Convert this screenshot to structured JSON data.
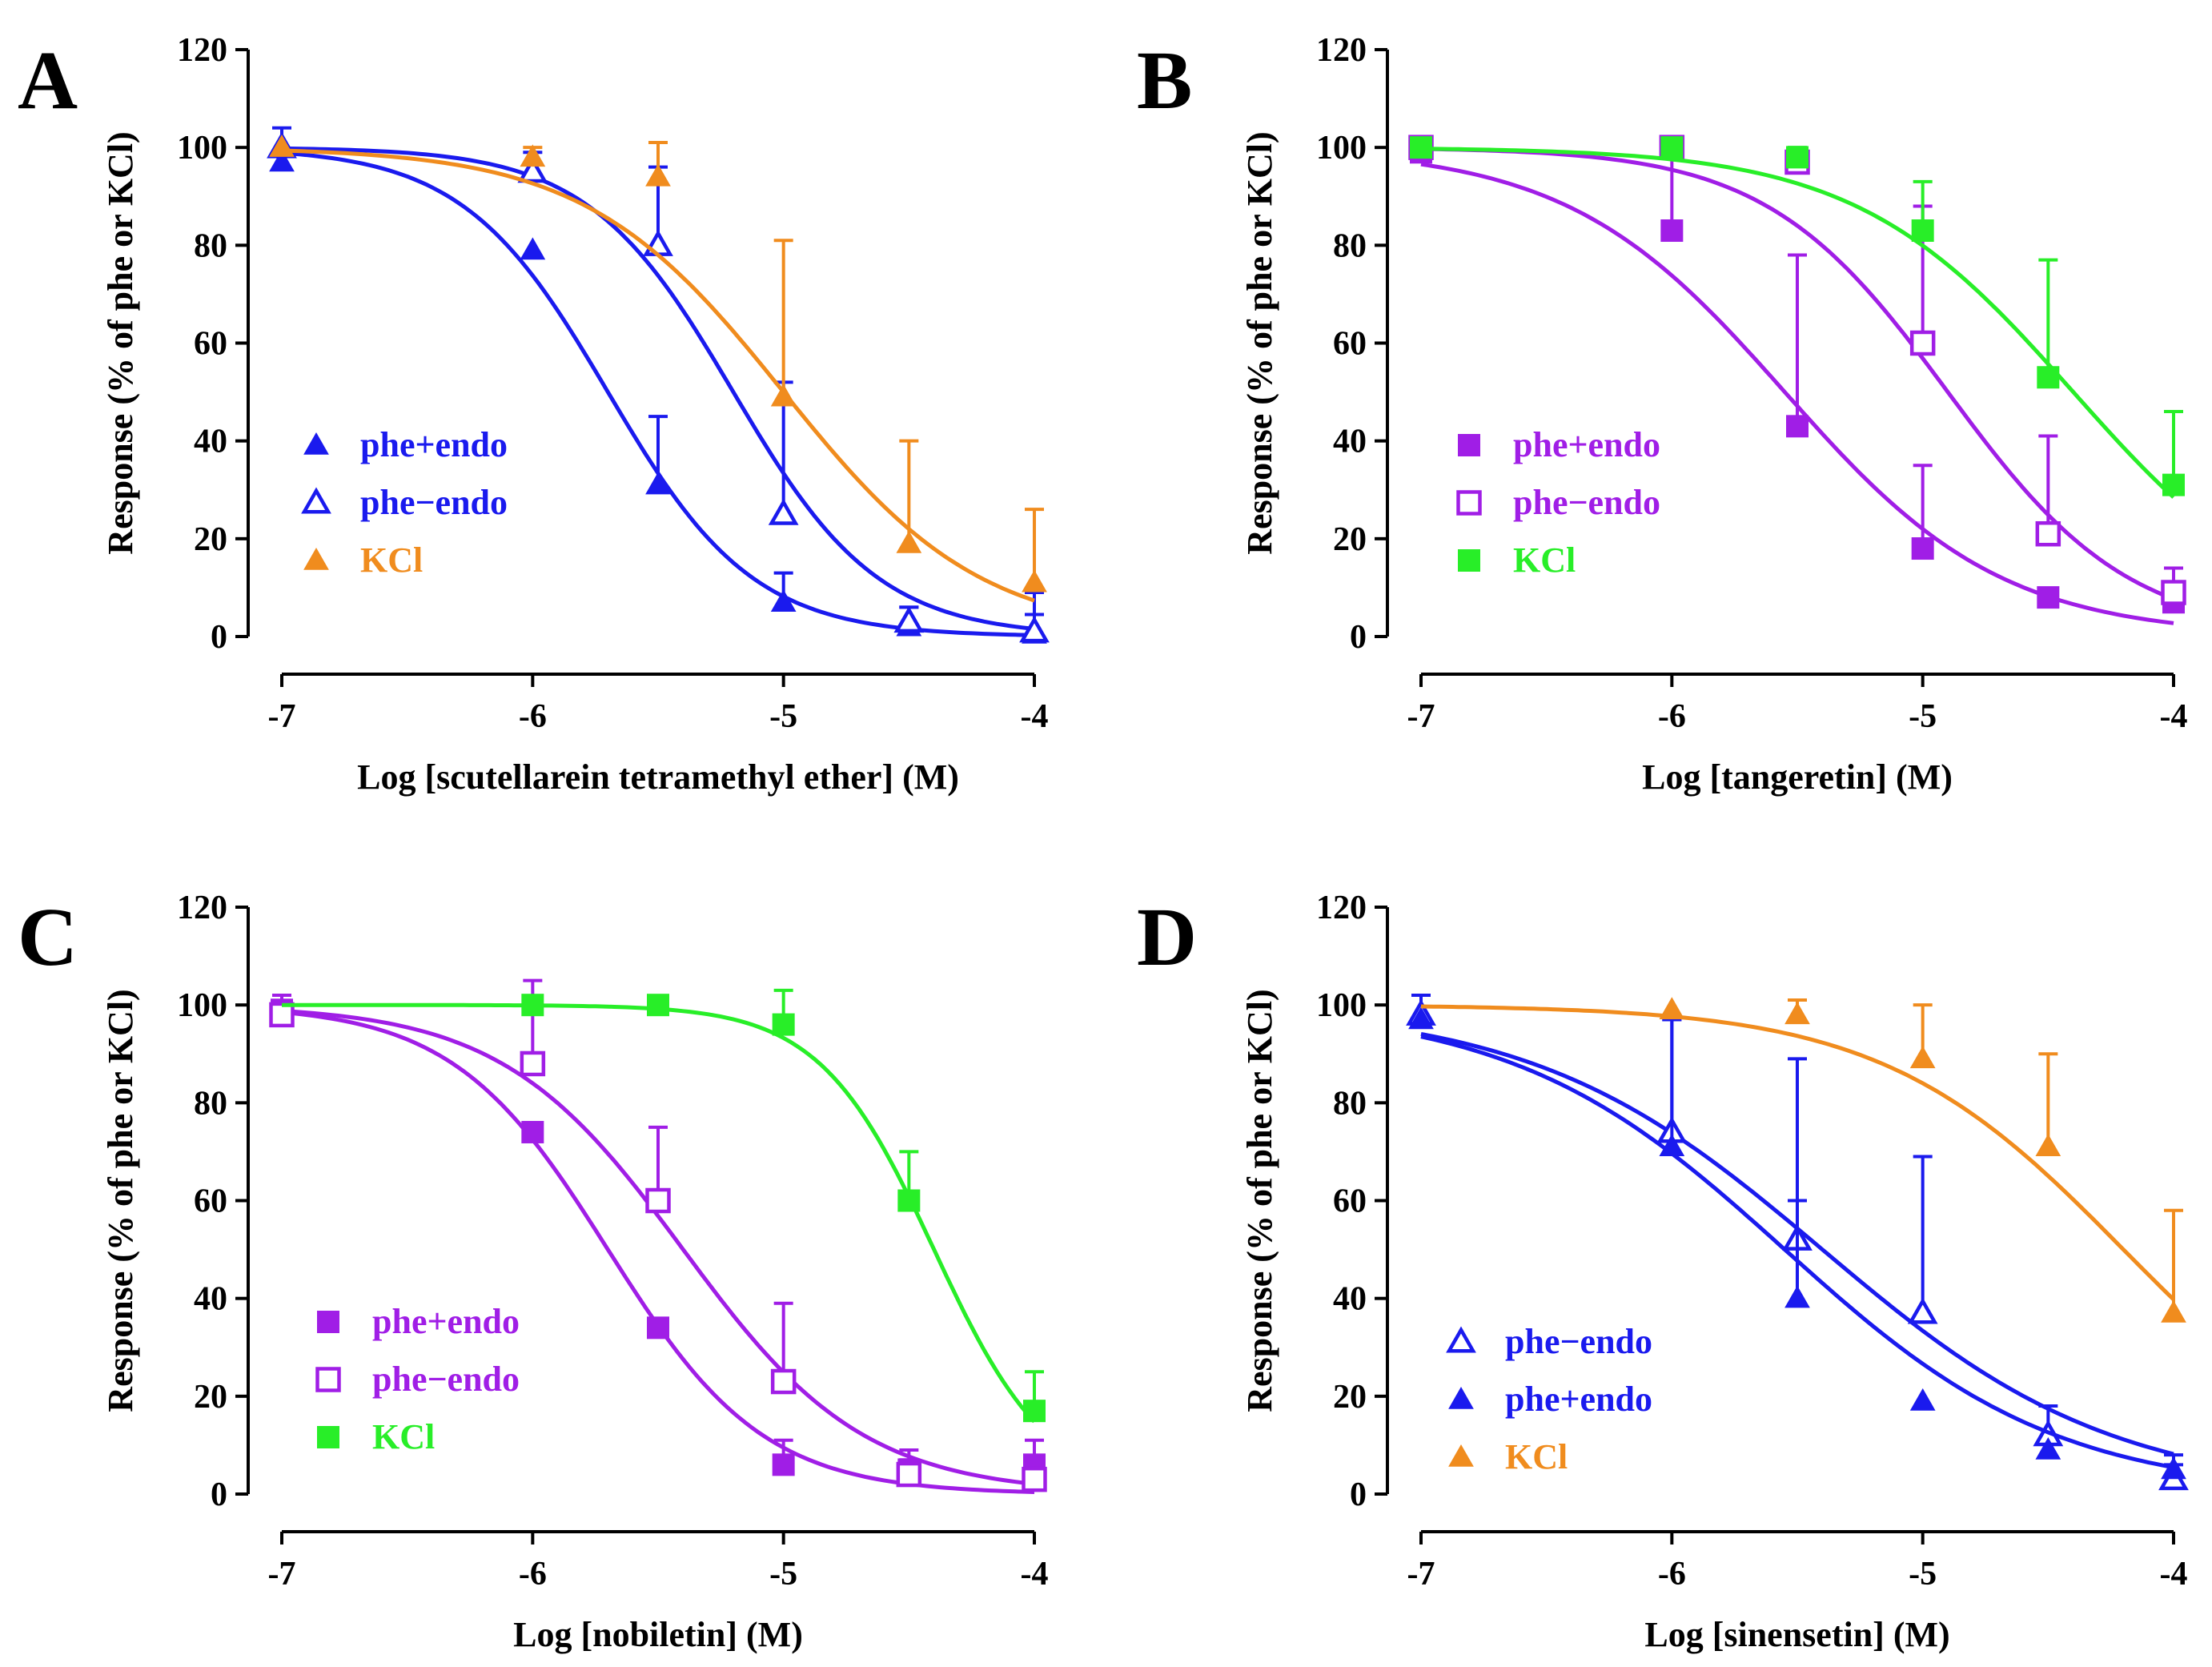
{
  "figure": {
    "panels": [
      {
        "letter": "A"
      },
      {
        "letter": "B"
      },
      {
        "letter": "C"
      },
      {
        "letter": "D"
      }
    ]
  },
  "colors": {
    "blue": "#1a1aee",
    "orange": "#f08c1e",
    "purple": "#a01ee6",
    "green": "#28ee28"
  },
  "chart_data": [
    {
      "type": "line",
      "panel": "A",
      "title": "",
      "xlabel": "Log [scutellarein tetramethyl ether] (M)",
      "ylabel": "Response (% of phe or KCl)",
      "xlim": [
        -7,
        -4
      ],
      "ylim": [
        0,
        120
      ],
      "xticks": [
        -7,
        -6,
        -5,
        -4
      ],
      "xtick_labels": [
        "-7",
        "-6",
        "-5",
        "-4"
      ],
      "yticks": [
        0,
        20,
        40,
        60,
        80,
        100,
        120
      ],
      "ytick_labels": [
        "0",
        "20",
        "40",
        "60",
        "80",
        "100",
        "120"
      ],
      "series": [
        {
          "name": "phe+endo",
          "color": "blue",
          "marker": "triangle-filled",
          "x": [
            -7,
            -6,
            -5.5,
            -5,
            -4.5,
            -4
          ],
          "y": [
            97,
            79,
            31,
            7,
            2,
            0.5
          ],
          "err": [
            0,
            0,
            14,
            6,
            4,
            4
          ],
          "fit": {
            "top": 100,
            "bottom": 0,
            "logec50": -5.7,
            "hill": 1.5
          }
        },
        {
          "name": "phe−endo",
          "color": "blue",
          "marker": "triangle-open",
          "x": [
            -7,
            -6,
            -5.5,
            -5,
            -4.5,
            -4
          ],
          "y": [
            100,
            95,
            80,
            25,
            3,
            1
          ],
          "err": [
            4,
            4,
            16,
            27,
            3,
            8
          ],
          "fit": {
            "top": 100,
            "bottom": 0,
            "logec50": -5.2,
            "hill": 1.5
          }
        },
        {
          "name": "KCl",
          "color": "orange",
          "marker": "triangle-filled",
          "x": [
            -7,
            -6,
            -5.5,
            -5,
            -4.5,
            -4
          ],
          "y": [
            100,
            98,
            94,
            49,
            19,
            11
          ],
          "err": [
            0,
            2,
            7,
            32,
            21,
            15
          ],
          "fit": {
            "top": 100,
            "bottom": 0,
            "logec50": -5.0,
            "hill": 1.1
          }
        }
      ],
      "legend": {
        "placement": "lower-left",
        "order": [
          0,
          1,
          2
        ]
      }
    },
    {
      "type": "line",
      "panel": "B",
      "title": "",
      "xlabel": "Log [tangeretin] (M)",
      "ylabel": "Response (% of phe or KCl)",
      "xlim": [
        -7,
        -4
      ],
      "ylim": [
        0,
        120
      ],
      "xticks": [
        -7,
        -6,
        -5,
        -4
      ],
      "xtick_labels": [
        "-7",
        "-6",
        "-5",
        "-4"
      ],
      "yticks": [
        0,
        20,
        40,
        60,
        80,
        100,
        120
      ],
      "ytick_labels": [
        "0",
        "20",
        "40",
        "60",
        "80",
        "100",
        "120"
      ],
      "series": [
        {
          "name": "phe+endo",
          "color": "purple",
          "marker": "square-filled",
          "x": [
            -7,
            -6,
            -5.5,
            -5,
            -4.5,
            -4
          ],
          "y": [
            99,
            83,
            43,
            18,
            8,
            7
          ],
          "err": [
            0,
            15,
            35,
            17,
            0,
            4
          ],
          "fit": {
            "top": 100,
            "bottom": 0,
            "logec50": -5.55,
            "hill": 1.0
          }
        },
        {
          "name": "phe−endo",
          "color": "purple",
          "marker": "square-open",
          "x": [
            -7,
            -6,
            -5.5,
            -5,
            -4.5,
            -4
          ],
          "y": [
            100,
            100,
            97,
            60,
            21,
            9
          ],
          "err": [
            0,
            0,
            0,
            28,
            20,
            5
          ],
          "fit": {
            "top": 100,
            "bottom": 0,
            "logec50": -4.9,
            "hill": 1.2
          }
        },
        {
          "name": "KCl",
          "color": "green",
          "marker": "square-filled",
          "x": [
            -7,
            -6,
            -5.5,
            -5,
            -4.5,
            -4
          ],
          "y": [
            100,
            100,
            98,
            83,
            53,
            31
          ],
          "err": [
            0,
            0,
            2,
            10,
            24,
            15
          ],
          "fit": {
            "top": 100,
            "bottom": 0,
            "logec50": -4.4,
            "hill": 1.0
          }
        }
      ],
      "legend": {
        "placement": "lower-left",
        "order": [
          0,
          1,
          2
        ]
      }
    },
    {
      "type": "line",
      "panel": "C",
      "title": "",
      "xlabel": "Log [nobiletin] (M)",
      "ylabel": "Response (% of phe or KCl)",
      "xlim": [
        -7,
        -4
      ],
      "ylim": [
        0,
        120
      ],
      "xticks": [
        -7,
        -6,
        -5,
        -4
      ],
      "xtick_labels": [
        "-7",
        "-6",
        "-5",
        "-4"
      ],
      "yticks": [
        0,
        20,
        40,
        60,
        80,
        100,
        120
      ],
      "ytick_labels": [
        "0",
        "20",
        "40",
        "60",
        "80",
        "100",
        "120"
      ],
      "series": [
        {
          "name": "phe+endo",
          "color": "purple",
          "marker": "square-filled",
          "x": [
            -7,
            -6,
            -5.5,
            -5,
            -4.5,
            -4
          ],
          "y": [
            99,
            74,
            34,
            6,
            5,
            6
          ],
          "err": [
            3,
            0,
            0,
            5,
            4,
            5
          ],
          "fit": {
            "top": 100,
            "bottom": 0,
            "logec50": -5.7,
            "hill": 1.4
          }
        },
        {
          "name": "phe−endo",
          "color": "purple",
          "marker": "square-open",
          "x": [
            -7,
            -6,
            -5.5,
            -5,
            -4.5,
            -4
          ],
          "y": [
            98,
            88,
            60,
            23,
            4,
            3
          ],
          "err": [
            0,
            17,
            15,
            16,
            3,
            3
          ],
          "fit": {
            "top": 100,
            "bottom": 0,
            "logec50": -5.4,
            "hill": 1.2
          }
        },
        {
          "name": "KCl",
          "color": "green",
          "marker": "square-filled",
          "x": [
            -6,
            -5.5,
            -5,
            -4.5,
            -4
          ],
          "y": [
            100,
            100,
            96,
            60,
            17
          ],
          "err": [
            0,
            0,
            7,
            10,
            8
          ],
          "fit": {
            "top": 100,
            "bottom": 0,
            "logec50": -4.4,
            "hill": 1.9
          }
        }
      ],
      "legend": {
        "placement": "lower-left",
        "order": [
          0,
          1,
          2
        ]
      }
    },
    {
      "type": "line",
      "panel": "D",
      "title": "",
      "xlabel": "Log [sinensetin] (M)",
      "ylabel": "Response (% of phe or KCl)",
      "xlim": [
        -7,
        -4
      ],
      "ylim": [
        0,
        120
      ],
      "xticks": [
        -7,
        -6,
        -5,
        -4
      ],
      "xtick_labels": [
        "-7",
        "-6",
        "-5",
        "-4"
      ],
      "yticks": [
        0,
        20,
        40,
        60,
        80,
        100,
        120
      ],
      "ytick_labels": [
        "0",
        "20",
        "40",
        "60",
        "80",
        "100",
        "120"
      ],
      "series": [
        {
          "name": "phe−endo",
          "color": "blue",
          "marker": "triangle-open",
          "x": [
            -7,
            -6,
            -5.5,
            -5,
            -4.5,
            -4
          ],
          "y": [
            98,
            74,
            52,
            37,
            12,
            3
          ],
          "err": [
            4,
            23,
            37,
            32,
            6,
            3
          ],
          "fit": {
            "top": 100,
            "bottom": 0,
            "logec50": -5.4,
            "hill": 0.75
          }
        },
        {
          "name": "phe+endo",
          "color": "blue",
          "marker": "triangle-filled",
          "x": [
            -7,
            -6,
            -5.5,
            -5,
            -4.5,
            -4
          ],
          "y": [
            97,
            71,
            40,
            19,
            9,
            5
          ],
          "err": [
            0,
            26,
            20,
            0,
            0,
            3
          ],
          "fit": {
            "top": 100,
            "bottom": 0,
            "logec50": -5.55,
            "hill": 0.8
          }
        },
        {
          "name": "KCl",
          "color": "orange",
          "marker": "triangle-filled",
          "x": [
            -6,
            -5.5,
            -5,
            -4.5,
            -4
          ],
          "y": [
            99,
            98,
            89,
            71,
            37
          ],
          "err": [
            0,
            3,
            11,
            19,
            21
          ],
          "fit": {
            "top": 100,
            "bottom": 0,
            "logec50": -4.2,
            "hill": 0.9
          }
        }
      ],
      "legend": {
        "placement": "lower-left",
        "order": [
          0,
          1,
          2
        ]
      }
    }
  ]
}
